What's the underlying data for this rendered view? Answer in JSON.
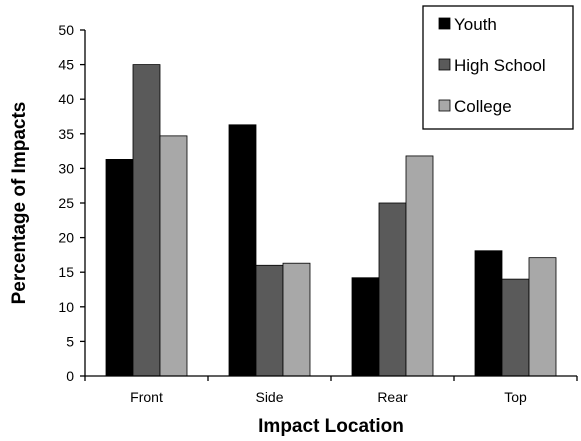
{
  "chart_data": {
    "type": "bar",
    "title": "",
    "xlabel": "Impact Location",
    "ylabel": "Percentage of Impacts",
    "categories": [
      "Front",
      "Side",
      "Rear",
      "Top"
    ],
    "series": [
      {
        "name": "Youth",
        "values": [
          31.3,
          36.3,
          14.2,
          18.1
        ],
        "color": "#000000"
      },
      {
        "name": "High School",
        "values": [
          45,
          16,
          25,
          14
        ],
        "color": "#5a5a5a"
      },
      {
        "name": "College",
        "values": [
          34.7,
          16.3,
          31.8,
          17.1
        ],
        "color": "#a8a8a8"
      }
    ],
    "ylim": [
      0,
      50
    ],
    "yticks": [
      0,
      5,
      10,
      15,
      20,
      25,
      30,
      35,
      40,
      45,
      50
    ],
    "grid": false,
    "legend_position": "top-right"
  }
}
